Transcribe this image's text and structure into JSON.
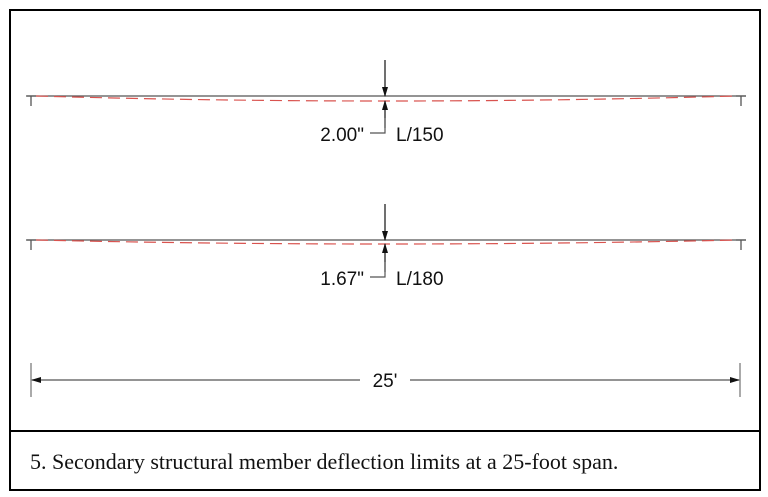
{
  "diagram": {
    "beams": [
      {
        "deflection_label": "2.00\"",
        "limit_label": "L/150"
      },
      {
        "deflection_label": "1.67\"",
        "limit_label": "L/180"
      }
    ],
    "span_label": "25'",
    "caption": "5. Secondary structural member deflection limits at a 25-foot span.",
    "colors": {
      "beam": "#555555",
      "deflected_shape": "#d9534f",
      "frame": "#000000"
    }
  }
}
